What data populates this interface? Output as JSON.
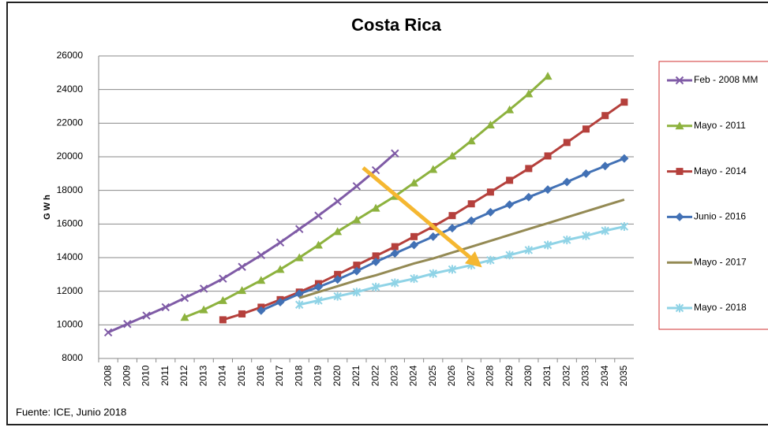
{
  "chart_data": {
    "type": "line",
    "title": "Costa Rica",
    "y_label": "G W h",
    "source": "Fuente: ICE, Junio 2018",
    "categories": [
      "2008",
      "2009",
      "2010",
      "2011",
      "2012",
      "2013",
      "2014",
      "2015",
      "2016",
      "2017",
      "2018",
      "2019",
      "2020",
      "2021",
      "2022",
      "2023",
      "2024",
      "2025",
      "2026",
      "2027",
      "2028",
      "2029",
      "2030",
      "2031",
      "2032",
      "2033",
      "2034",
      "2035"
    ],
    "ylim": [
      8000,
      26000
    ],
    "yticks": [
      8000,
      10000,
      12000,
      14000,
      16000,
      18000,
      20000,
      22000,
      24000,
      26000
    ],
    "grid": true,
    "series": [
      {
        "name": "Feb - 2008 MM",
        "color": "#7f5ba6",
        "marker": "x",
        "values": [
          9550,
          10050,
          10550,
          11050,
          11600,
          12150,
          12750,
          13450,
          14150,
          14900,
          15700,
          16500,
          17350,
          18250,
          19200,
          20200,
          null,
          null,
          null,
          null,
          null,
          null,
          null,
          null,
          null,
          null,
          null,
          null
        ]
      },
      {
        "name": "Mayo - 2011",
        "color": "#8db23e",
        "marker": "triangle",
        "values": [
          null,
          null,
          null,
          null,
          10450,
          10900,
          11450,
          12050,
          12650,
          13300,
          14000,
          14750,
          15550,
          16250,
          16950,
          17650,
          18450,
          19250,
          20050,
          20950,
          21900,
          22800,
          23750,
          24800,
          null,
          null,
          null,
          null
        ]
      },
      {
        "name": "Mayo - 2014",
        "color": "#b5403c",
        "marker": "square",
        "values": [
          null,
          null,
          null,
          null,
          null,
          null,
          10300,
          10650,
          11050,
          11500,
          11950,
          12450,
          13000,
          13550,
          14100,
          14650,
          15250,
          15850,
          16500,
          17200,
          17900,
          18600,
          19300,
          20050,
          20850,
          21650,
          22450,
          23250
        ]
      },
      {
        "name": "Junio - 2016",
        "color": "#4271b5",
        "marker": "diamond",
        "values": [
          null,
          null,
          null,
          null,
          null,
          null,
          null,
          null,
          10850,
          11350,
          11850,
          12250,
          12700,
          13200,
          13750,
          14250,
          14750,
          15250,
          15750,
          16200,
          16700,
          17150,
          17600,
          18050,
          18500,
          19000,
          19450,
          19900
        ]
      },
      {
        "name": "Mayo - 2017",
        "color": "#948a54",
        "marker": "none",
        "values": [
          null,
          null,
          null,
          null,
          null,
          null,
          null,
          null,
          null,
          null,
          11600,
          11950,
          12300,
          12650,
          12950,
          13300,
          13650,
          13950,
          14300,
          14650,
          15000,
          15350,
          15700,
          16050,
          16400,
          16750,
          17100,
          17450
        ]
      },
      {
        "name": "Mayo - 2018",
        "color": "#8fd3e6",
        "marker": "star",
        "values": [
          null,
          null,
          null,
          null,
          null,
          null,
          null,
          null,
          null,
          null,
          11200,
          11450,
          11700,
          11950,
          12250,
          12500,
          12750,
          13050,
          13300,
          13550,
          13850,
          14150,
          14450,
          14750,
          15050,
          15300,
          15600,
          15850
        ]
      }
    ]
  }
}
